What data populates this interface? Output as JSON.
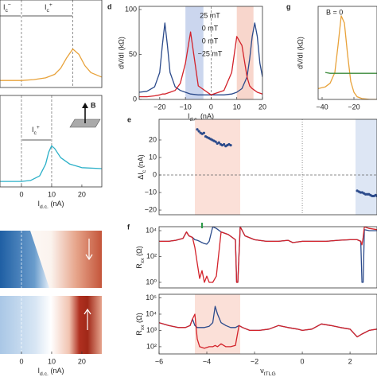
{
  "chart_data": [
    {
      "type": "line",
      "xlim": [
        -7.1,
        26.6
      ],
      "ylim": [
        0,
        1
      ],
      "x": [
        -7,
        -3,
        0,
        4,
        8,
        11,
        13,
        15,
        17,
        19,
        21,
        23,
        26.5
      ],
      "series": [
        {
          "color": "#e8a23a",
          "values": [
            0.08,
            0.08,
            0.08,
            0.09,
            0.11,
            0.15,
            0.22,
            0.34,
            0.44,
            0.38,
            0.25,
            0.17,
            0.12
          ]
        }
      ],
      "vlines": [
        0,
        17
      ],
      "annotations": [
        [
          "I",
          "c",
          "−"
        ],
        [
          "I",
          "c",
          "+"
        ]
      ]
    },
    {
      "type": "line",
      "xlim": [
        -7.1,
        26.6
      ],
      "ylim": [
        0,
        1
      ],
      "x": [
        -7,
        -3,
        0,
        3,
        6,
        8,
        9,
        10,
        11,
        13,
        16,
        20,
        26.5
      ],
      "series": [
        {
          "color": "#2bb0c8",
          "values": [
            0.06,
            0.06,
            0.06,
            0.07,
            0.12,
            0.25,
            0.38,
            0.45,
            0.42,
            0.32,
            0.25,
            0.21,
            0.2
          ]
        }
      ],
      "vlines": [
        0,
        10
      ],
      "annotations": [
        [
          "I",
          "c",
          "+"
        ]
      ],
      "field_label": "B",
      "xticks": [
        0,
        10,
        20
      ],
      "x_label": [
        "I",
        "d.c.",
        " (nA)"
      ]
    },
    {
      "type": "heatmap",
      "xlim": [
        -7.1,
        26.6
      ],
      "vlines": [
        0
      ],
      "xticks": [
        0,
        10,
        20
      ],
      "x_label": [
        "I",
        "d.c.",
        " (nA)"
      ]
    },
    {
      "type": "line",
      "panel": "d",
      "xlim": [
        -28,
        20
      ],
      "ylim": [
        0,
        103.5
      ],
      "y_label": "dV/dI (kΩ)",
      "x_label": [
        "I",
        "d.c.",
        " (nA)"
      ],
      "yticks": [
        0,
        50,
        100
      ],
      "xticks": [
        {
          "value": -20,
          "label": "−20"
        },
        {
          "value": -10,
          "label": "−10"
        },
        0,
        10,
        20
      ],
      "x": [
        -28,
        -25,
        -22,
        -20,
        -19,
        -18,
        -17,
        -16,
        -14,
        -12,
        -10,
        -8,
        -5,
        0,
        5,
        8,
        10,
        12,
        14,
        15,
        16,
        17,
        18,
        19,
        20
      ],
      "series": [
        {
          "color": "#2b4a8b",
          "values": [
            8,
            9,
            14,
            30,
            60,
            85,
            60,
            30,
            14,
            10,
            8,
            6,
            5,
            5,
            5,
            6,
            8,
            12,
            25,
            45,
            70,
            85,
            70,
            40,
            25
          ]
        },
        {
          "color": "#d3222a",
          "values": [
            3,
            3,
            4,
            5,
            6,
            6,
            7,
            8,
            10,
            18,
            40,
            75,
            15,
            5,
            10,
            30,
            70,
            60,
            25,
            15,
            12,
            10,
            8,
            7,
            6
          ]
        }
      ],
      "bands": [
        {
          "from": -10,
          "to": -3,
          "color": "#cbd6ee"
        },
        {
          "from": 10,
          "to": 16.5,
          "color": "#f8d6cc"
        }
      ],
      "vlines": [
        0
      ],
      "legend": [
        {
          "text": "25 mT",
          "color": "#2b8fc8"
        },
        {
          "text": "0 mT",
          "color": "#1d2f5e"
        },
        {
          "text": "0 mT",
          "color": "#d3222a"
        },
        {
          "text": "−25 mT",
          "color": "#e8a23a"
        }
      ]
    },
    {
      "type": "line",
      "panel": "g",
      "xlim": [
        -42.5,
        -5.5
      ],
      "ylim": [
        0,
        103.5
      ],
      "y_label": "dV/dI (kΩ)",
      "annotations": [
        "B = 0"
      ],
      "xticks": [
        {
          "value": -40,
          "label": "−40"
        },
        {
          "value": -20,
          "label": "−20"
        }
      ],
      "x": [
        -42.5,
        -38,
        -35,
        -32,
        -30,
        -28,
        -26,
        -24,
        -22,
        -20,
        -18,
        -15,
        -10,
        -5.5
      ],
      "series": [
        {
          "color": "#e8a23a",
          "values": [
            12,
            14,
            18,
            30,
            60,
            93,
            85,
            50,
            20,
            8,
            3,
            1,
            0,
            0
          ]
        },
        {
          "color": "#3a8a3a",
          "values": [
            null,
            30,
            29,
            29,
            29,
            29,
            29,
            29,
            29,
            29,
            29,
            29,
            29,
            29
          ]
        }
      ]
    },
    {
      "type": "scatter",
      "panel": "e",
      "xlim": [
        -6,
        3.13
      ],
      "ylim": [
        -22.7,
        31.8
      ],
      "y_label": [
        "ΔI",
        "c",
        " (nA)"
      ],
      "yticks": [
        20,
        10,
        0,
        {
          "value": -10,
          "label": "−10"
        },
        {
          "value": -20,
          "label": "−20"
        }
      ],
      "bands": [
        {
          "from": -4.5,
          "to": -2.6,
          "color": "#fbe0d8"
        },
        {
          "from": 2.23,
          "to": 3.13,
          "color": "#dde6f4"
        }
      ],
      "hlines": [
        0
      ],
      "vlines": [
        0
      ],
      "color": "#2b4a8b",
      "x": [
        -4.4,
        -4.33,
        -4.26,
        -4.19,
        -4.12,
        -4.05,
        -3.98,
        -3.91,
        -3.84,
        -3.77,
        -3.7,
        -3.63,
        -3.56,
        -3.49,
        -3.42,
        -3.35,
        -3.28,
        -3.21,
        -3.14,
        -3.07,
        -3.0,
        2.3,
        2.37,
        2.44,
        2.51,
        2.58,
        2.65,
        2.72,
        2.79,
        2.86,
        2.93,
        3.0,
        3.07,
        3.13
      ],
      "values": [
        26,
        25,
        24,
        23.5,
        24,
        22,
        21.5,
        21,
        20.5,
        20,
        19.5,
        19,
        18,
        18.5,
        17.5,
        17,
        17.5,
        16.5,
        17,
        17.5,
        17,
        -9,
        -9.5,
        -10,
        -10,
        -10.5,
        -11,
        -11,
        -11,
        -11.5,
        -12,
        -12,
        -11.5,
        -12
      ]
    },
    {
      "type": "line",
      "panel": "f",
      "xlim": [
        -6,
        3.13
      ],
      "ylim": [
        0.37,
        20400
      ],
      "log_y": true,
      "y_label": [
        "R",
        "xx",
        " (Ω)"
      ],
      "yticks": [
        {
          "value": 1,
          "label": "10⁰"
        },
        {
          "value": 100,
          "label": "10²"
        },
        {
          "value": 10000,
          "label": "10⁴"
        }
      ],
      "marker": -4.2,
      "marker_color": "#2e9a4a",
      "x": [
        -6,
        -5.6,
        -5.3,
        -5.0,
        -4.85,
        -4.75,
        -4.6,
        -4.5,
        -4.4,
        -4.3,
        -4.2,
        -4.1,
        -4.0,
        -3.9,
        -3.75,
        -3.6,
        -3.4,
        -3.1,
        -2.8,
        -2.75,
        -2.7,
        -2.6,
        -2.4,
        -2,
        -1.5,
        -1,
        -0.6,
        -0.4,
        0,
        0.5,
        1,
        1.5,
        2,
        2.3,
        2.45,
        2.5,
        2.55,
        2.6,
        2.8,
        3.13
      ],
      "series": [
        {
          "color": "#2b4a8b",
          "values": [
            1500,
            1500,
            1800,
            2500,
            8000,
            4000,
            3000,
            2000,
            1800,
            1500,
            1200,
            1000,
            900,
            1500,
            20000,
            15000,
            8000,
            5000,
            2000,
            1,
            1,
            20000,
            4000,
            2000,
            1500,
            1500,
            1800,
            1200,
            1500,
            1500,
            1500,
            1800,
            2000,
            2000,
            1500,
            1,
            1,
            12000,
            10000,
            10000
          ]
        },
        {
          "color": "#d3222a",
          "values": [
            1500,
            1500,
            1800,
            2500,
            8000,
            4000,
            3000,
            500,
            30,
            2,
            8,
            1,
            3,
            1,
            1,
            3,
            8000,
            5000,
            2000,
            1,
            1,
            20000,
            4000,
            2000,
            1500,
            1500,
            1800,
            1200,
            1500,
            1500,
            1500,
            1800,
            2000,
            2000,
            1500,
            800,
            3000,
            20000,
            15000,
            12000
          ]
        }
      ]
    },
    {
      "type": "line",
      "xlim": [
        -6,
        3.13
      ],
      "ylim": [
        36,
        166000
      ],
      "log_y": true,
      "y_label": [
        "R",
        "xx",
        " (Ω)"
      ],
      "x_label": [
        "ν",
        "tTLG"
      ],
      "yticks": [
        {
          "value": 100,
          "label": "10²"
        },
        {
          "value": 1000,
          "label": "10³"
        },
        {
          "value": 10000,
          "label": "10⁴"
        },
        {
          "value": 100000,
          "label": "10⁵"
        }
      ],
      "xticks": [
        {
          "value": -6,
          "label": "−6"
        },
        {
          "value": -4,
          "label": "−4"
        },
        {
          "value": -2,
          "label": "−2"
        },
        0,
        2
      ],
      "bands": [
        {
          "from": -4.5,
          "to": -2.6,
          "color": "#fbe0d8"
        }
      ],
      "x": [
        -6,
        -5.6,
        -5.2,
        -4.9,
        -4.7,
        -4.6,
        -4.5,
        -4.4,
        -4.3,
        -4.1,
        -3.9,
        -3.75,
        -3.65,
        -3.55,
        -3.4,
        -3.2,
        -3.0,
        -2.8,
        -2.65,
        -2.5,
        -2.2,
        -1.8,
        -1.4,
        -1,
        -0.6,
        -0.2,
        0,
        0.4,
        0.8,
        1.2,
        1.6,
        2.0,
        2.3,
        2.5,
        2.8,
        3.13
      ],
      "series": [
        {
          "color": "#2b4a8b",
          "values": [
            3000,
            2000,
            1500,
            1500,
            2000,
            5000,
            2000,
            1500,
            1500,
            1500,
            1800,
            3000,
            30000,
            10000,
            3000,
            2000,
            1500,
            1500,
            2000,
            1500,
            1000,
            1000,
            1200,
            2000,
            1500,
            1200,
            1000,
            1200,
            2500,
            2000,
            1500,
            1200,
            400,
            600,
            1000,
            1200
          ]
        },
        {
          "color": "#d3222a",
          "values": [
            3000,
            2000,
            1500,
            1500,
            2000,
            5000,
            10000,
            300,
            100,
            80,
            100,
            100,
            120,
            100,
            150,
            100,
            100,
            120,
            2000,
            1500,
            1000,
            1000,
            1200,
            2000,
            1500,
            1200,
            1000,
            1200,
            2500,
            2000,
            1500,
            1200,
            400,
            600,
            1000,
            1200
          ]
        }
      ]
    }
  ]
}
